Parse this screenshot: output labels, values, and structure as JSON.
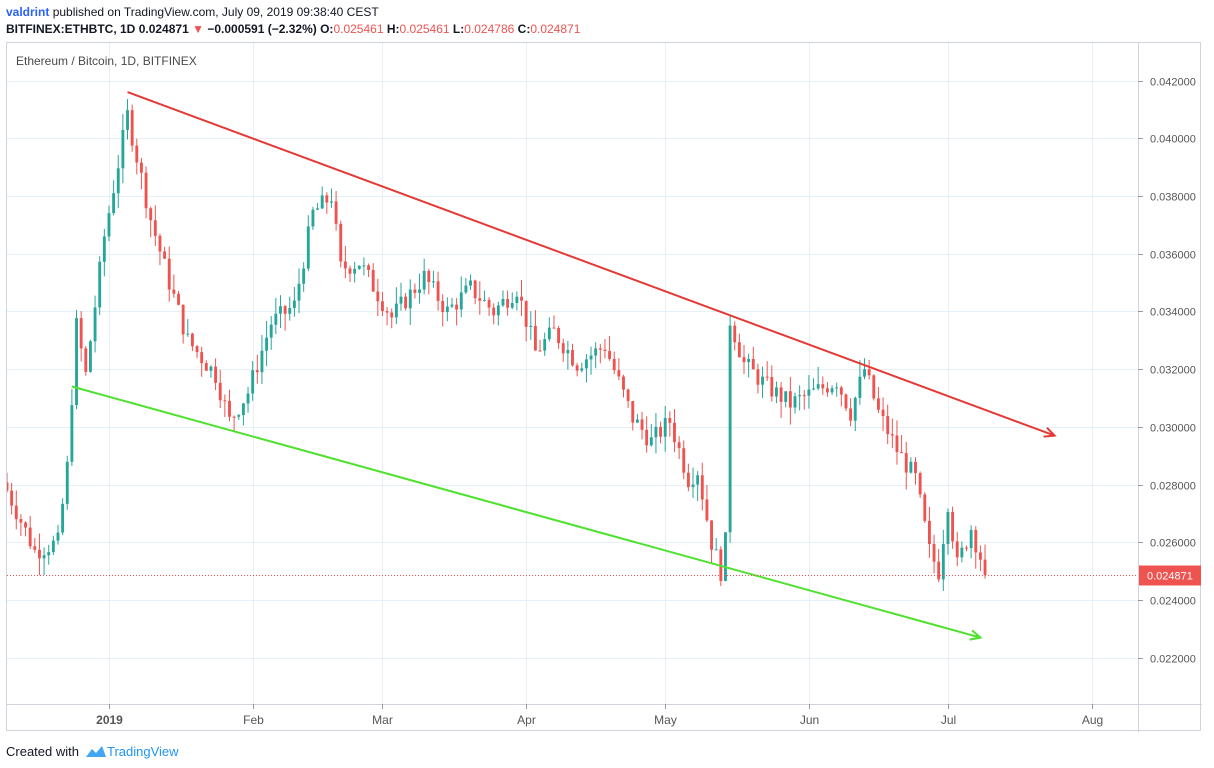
{
  "header": {
    "user": "valdrint",
    "published_text": "published on TradingView.com, July 09, 2019 09:38:40 CEST",
    "symbol": "BITFINEX:ETHBTC, 1D",
    "last": "0.024871",
    "change": "−0.000591 (−2.32%)",
    "o_label": "O:",
    "o_value": "0.025461",
    "h_label": "H:",
    "h_value": "0.025461",
    "l_label": "L:",
    "l_value": "0.024786",
    "c_label": "C:",
    "c_value": "0.024871"
  },
  "footer": {
    "created_with": "Created with",
    "brand": "TradingView"
  },
  "colors": {
    "up": "#26a69a",
    "down": "#ef5350",
    "resistance": "#e53935",
    "support": "#4ee12e",
    "grid": "#e6f0f7"
  },
  "chart_data": {
    "type": "candlestick",
    "title": "Ethereum / Bitcoin, 1D, BITFINEX",
    "ylim": [
      0.0204,
      0.0433
    ],
    "y_ticks": [
      "0.022000",
      "0.024000",
      "0.026000",
      "0.028000",
      "0.030000",
      "0.032000",
      "0.034000",
      "0.036000",
      "0.038000",
      "0.040000",
      "0.042000"
    ],
    "x_range": [
      "2018-12-10",
      "2019-08-11"
    ],
    "x_ticks": [
      {
        "date": "2019-01-01",
        "label": "2019"
      },
      {
        "date": "2019-02-01",
        "label": "Feb"
      },
      {
        "date": "2019-03-01",
        "label": "Mar"
      },
      {
        "date": "2019-04-01",
        "label": "Apr"
      },
      {
        "date": "2019-05-01",
        "label": "May"
      },
      {
        "date": "2019-06-01",
        "label": "Jun"
      },
      {
        "date": "2019-07-01",
        "label": "Jul"
      },
      {
        "date": "2019-08-01",
        "label": "Aug"
      }
    ],
    "last_price": "0.024871",
    "last_price_value": 0.024871,
    "resistance_line": {
      "start": {
        "date": "2019-01-05",
        "value": 0.0416
      },
      "end": {
        "date": "2019-07-24",
        "value": 0.0297
      }
    },
    "support_line": {
      "start": {
        "date": "2018-12-24",
        "value": 0.0314
      },
      "end": {
        "date": "2019-07-08",
        "value": 0.0227
      }
    },
    "key_points": [
      {
        "date": "2018-12-10",
        "value": 0.0278
      },
      {
        "date": "2018-12-16",
        "value": 0.0257
      },
      {
        "date": "2018-12-21",
        "value": 0.026
      },
      {
        "date": "2018-12-23",
        "value": 0.0286
      },
      {
        "date": "2018-12-25",
        "value": 0.0335
      },
      {
        "date": "2018-12-27",
        "value": 0.0318
      },
      {
        "date": "2018-12-31",
        "value": 0.0366
      },
      {
        "date": "2019-01-05",
        "value": 0.0408
      },
      {
        "date": "2019-01-10",
        "value": 0.0372
      },
      {
        "date": "2019-01-14",
        "value": 0.035
      },
      {
        "date": "2019-01-18",
        "value": 0.033
      },
      {
        "date": "2019-01-24",
        "value": 0.0318
      },
      {
        "date": "2019-01-27",
        "value": 0.0302
      },
      {
        "date": "2019-01-31",
        "value": 0.0312
      },
      {
        "date": "2019-02-05",
        "value": 0.0336
      },
      {
        "date": "2019-02-10",
        "value": 0.0342
      },
      {
        "date": "2019-02-14",
        "value": 0.0374
      },
      {
        "date": "2019-02-18",
        "value": 0.038
      },
      {
        "date": "2019-02-20",
        "value": 0.0355
      },
      {
        "date": "2019-02-24",
        "value": 0.0357
      },
      {
        "date": "2019-03-03",
        "value": 0.0338
      },
      {
        "date": "2019-03-10",
        "value": 0.0352
      },
      {
        "date": "2019-03-15",
        "value": 0.034
      },
      {
        "date": "2019-03-20",
        "value": 0.0348
      },
      {
        "date": "2019-03-25",
        "value": 0.034
      },
      {
        "date": "2019-03-30",
        "value": 0.0348
      },
      {
        "date": "2019-04-03",
        "value": 0.0326
      },
      {
        "date": "2019-04-07",
        "value": 0.0333
      },
      {
        "date": "2019-04-12",
        "value": 0.0322
      },
      {
        "date": "2019-04-18",
        "value": 0.0328
      },
      {
        "date": "2019-04-24",
        "value": 0.0303
      },
      {
        "date": "2019-04-28",
        "value": 0.0295
      },
      {
        "date": "2019-05-02",
        "value": 0.0302
      },
      {
        "date": "2019-05-06",
        "value": 0.0282
      },
      {
        "date": "2019-05-08",
        "value": 0.0285
      },
      {
        "date": "2019-05-11",
        "value": 0.026
      },
      {
        "date": "2019-05-13",
        "value": 0.025
      },
      {
        "date": "2019-05-14",
        "value": 0.026
      },
      {
        "date": "2019-05-15",
        "value": 0.0337
      },
      {
        "date": "2019-05-18",
        "value": 0.0322
      },
      {
        "date": "2019-05-23",
        "value": 0.0314
      },
      {
        "date": "2019-05-28",
        "value": 0.0308
      },
      {
        "date": "2019-06-02",
        "value": 0.0312
      },
      {
        "date": "2019-06-07",
        "value": 0.0316
      },
      {
        "date": "2019-06-10",
        "value": 0.0305
      },
      {
        "date": "2019-06-13",
        "value": 0.032
      },
      {
        "date": "2019-06-16",
        "value": 0.0305
      },
      {
        "date": "2019-06-20",
        "value": 0.0292
      },
      {
        "date": "2019-06-24",
        "value": 0.0282
      },
      {
        "date": "2019-06-27",
        "value": 0.0257
      },
      {
        "date": "2019-06-29",
        "value": 0.025
      },
      {
        "date": "2019-07-01",
        "value": 0.0274
      },
      {
        "date": "2019-07-03",
        "value": 0.0252
      },
      {
        "date": "2019-07-06",
        "value": 0.0265
      },
      {
        "date": "2019-07-08",
        "value": 0.0255
      },
      {
        "date": "2019-07-09",
        "value": 0.024871
      }
    ]
  }
}
